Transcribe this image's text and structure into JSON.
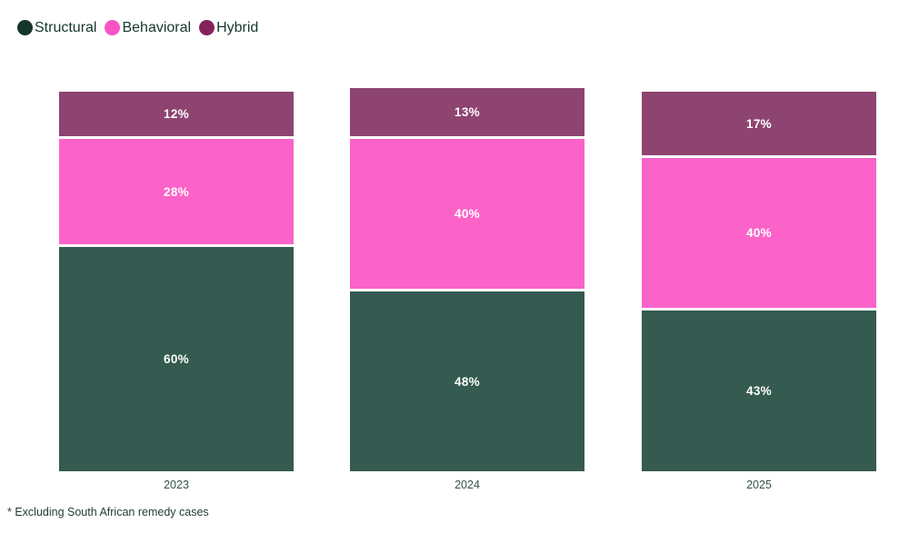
{
  "legend": {
    "items": [
      {
        "label": "Structural",
        "color": "#16362c"
      },
      {
        "label": "Behavioral",
        "color": "#f953c2"
      },
      {
        "label": "Hybrid",
        "color": "#86225a"
      }
    ]
  },
  "chart_data": {
    "type": "bar",
    "stacked": true,
    "orientation": "vertical",
    "categories": [
      "2023",
      "2024",
      "2025"
    ],
    "series": [
      {
        "name": "Hybrid",
        "color": "#8e4470",
        "values": [
          12,
          13,
          17
        ]
      },
      {
        "name": "Behavioral",
        "color": "#fb63c8",
        "values": [
          28,
          40,
          40
        ]
      },
      {
        "name": "Structural",
        "color": "#355a50",
        "values": [
          60,
          48,
          43
        ]
      }
    ],
    "value_suffix": "%",
    "ylim": [
      0,
      100
    ],
    "grid": false,
    "legend_position": "top-left",
    "title": "",
    "xlabel": "",
    "ylabel": ""
  },
  "footnote": "* Excluding South African remedy cases"
}
